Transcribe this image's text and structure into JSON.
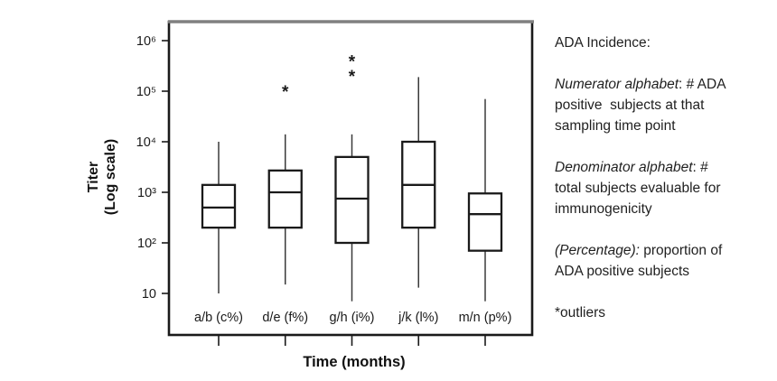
{
  "chart_data": {
    "type": "box",
    "xlabel": "Time (months)",
    "ylabel_lines": [
      "Titer",
      "(Log scale)"
    ],
    "y_scale": "log10",
    "grid": false,
    "y_ticks": [
      {
        "label": "10⁶",
        "value": 1000000
      },
      {
        "label": "10⁵",
        "value": 100000
      },
      {
        "label": "10⁴",
        "value": 10000
      },
      {
        "label": "10³",
        "value": 1000
      },
      {
        "label": "10²",
        "value": 100
      },
      {
        "label": "10",
        "value": 10
      }
    ],
    "ylim_log10": [
      0.2,
      6.4
    ],
    "categories": [
      "a/b (c%)",
      "d/e (f%)",
      "g/h (i%)",
      "j/k (l%)",
      "m/n (p%)"
    ],
    "boxes": [
      {
        "category": "a/b (c%)",
        "whisker_low": 10,
        "q1": 200,
        "median": 500,
        "q3": 1400,
        "whisker_high": 10000,
        "outliers": []
      },
      {
        "category": "d/e (f%)",
        "whisker_low": 15,
        "q1": 200,
        "median": 1000,
        "q3": 2700,
        "whisker_high": 14000,
        "outliers": [
          100000
        ]
      },
      {
        "category": "g/h (i%)",
        "whisker_low": 7,
        "q1": 100,
        "median": 750,
        "q3": 5000,
        "whisker_high": 14000,
        "outliers": [
          200000,
          400000
        ]
      },
      {
        "category": "j/k (l%)",
        "whisker_low": 13,
        "q1": 200,
        "median": 1400,
        "q3": 10000,
        "whisker_high": 190000,
        "outliers": []
      },
      {
        "category": "m/n (p%)",
        "whisker_low": 7,
        "q1": 70,
        "median": 370,
        "q3": 950,
        "whisker_high": 70000,
        "outliers": []
      }
    ],
    "outlier_marker": "*",
    "colors": {
      "ink": "#1a1a1a",
      "whisker": "#3a3a3a",
      "frame_top": "#808080",
      "background": "#ffffff"
    }
  },
  "annotation_panel": {
    "paras": [
      {
        "lead": "",
        "rest": "ADA Incidence:"
      },
      {
        "lead": "Numerator alphabet",
        "rest": ": # ADA\npositive  subjects at that\nsampling time point"
      },
      {
        "lead": "Denominator alphabet",
        "rest": ": #\ntotal subjects evaluable for\nimmunogenicity"
      },
      {
        "lead": "(Percentage):",
        "rest": " proportion of\nADA positive subjects"
      },
      {
        "lead": "",
        "rest": "*outliers"
      }
    ]
  }
}
